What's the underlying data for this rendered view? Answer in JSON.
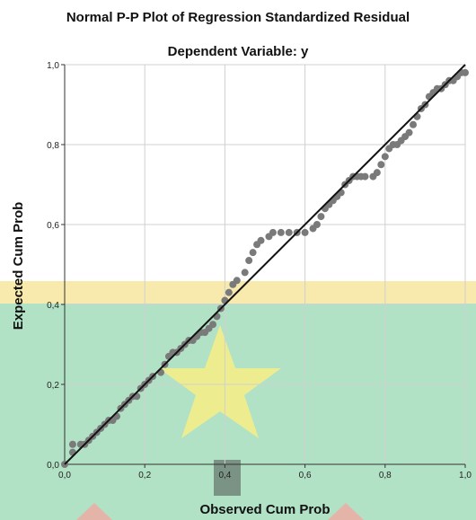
{
  "chart_data": {
    "type": "scatter",
    "title": "Normal P-P Plot of Regression Standardized Residual",
    "subtitle": "Dependent Variable: y",
    "xlabel": "Observed Cum Prob",
    "ylabel": "Expected Cum Prob",
    "xlim": [
      0,
      1
    ],
    "ylim": [
      0,
      1
    ],
    "x_ticks": [
      "0,0",
      "0,2",
      "0,4",
      "0,6",
      "0,8",
      "1,0"
    ],
    "y_ticks": [
      "0,0",
      "0,2",
      "0,4",
      "0,6",
      "0,8",
      "1,0"
    ],
    "grid": true,
    "reference_line": {
      "from": [
        0,
        0
      ],
      "to": [
        1,
        1
      ]
    },
    "series": [
      {
        "values": [
          [
            0.0,
            0.0
          ],
          [
            0.02,
            0.03
          ],
          [
            0.02,
            0.05
          ],
          [
            0.04,
            0.05
          ],
          [
            0.05,
            0.05
          ],
          [
            0.06,
            0.06
          ],
          [
            0.07,
            0.07
          ],
          [
            0.08,
            0.08
          ],
          [
            0.09,
            0.09
          ],
          [
            0.1,
            0.1
          ],
          [
            0.11,
            0.11
          ],
          [
            0.12,
            0.11
          ],
          [
            0.13,
            0.12
          ],
          [
            0.14,
            0.14
          ],
          [
            0.15,
            0.15
          ],
          [
            0.16,
            0.16
          ],
          [
            0.17,
            0.17
          ],
          [
            0.18,
            0.17
          ],
          [
            0.19,
            0.19
          ],
          [
            0.2,
            0.2
          ],
          [
            0.21,
            0.21
          ],
          [
            0.22,
            0.22
          ],
          [
            0.24,
            0.23
          ],
          [
            0.25,
            0.25
          ],
          [
            0.26,
            0.27
          ],
          [
            0.27,
            0.28
          ],
          [
            0.28,
            0.28
          ],
          [
            0.29,
            0.29
          ],
          [
            0.3,
            0.3
          ],
          [
            0.31,
            0.31
          ],
          [
            0.32,
            0.31
          ],
          [
            0.33,
            0.32
          ],
          [
            0.34,
            0.33
          ],
          [
            0.35,
            0.33
          ],
          [
            0.36,
            0.34
          ],
          [
            0.37,
            0.35
          ],
          [
            0.38,
            0.37
          ],
          [
            0.39,
            0.39
          ],
          [
            0.4,
            0.41
          ],
          [
            0.41,
            0.43
          ],
          [
            0.42,
            0.45
          ],
          [
            0.43,
            0.46
          ],
          [
            0.45,
            0.48
          ],
          [
            0.46,
            0.51
          ],
          [
            0.47,
            0.53
          ],
          [
            0.48,
            0.55
          ],
          [
            0.49,
            0.56
          ],
          [
            0.51,
            0.57
          ],
          [
            0.52,
            0.58
          ],
          [
            0.54,
            0.58
          ],
          [
            0.56,
            0.58
          ],
          [
            0.58,
            0.58
          ],
          [
            0.6,
            0.58
          ],
          [
            0.62,
            0.59
          ],
          [
            0.63,
            0.6
          ],
          [
            0.64,
            0.62
          ],
          [
            0.65,
            0.64
          ],
          [
            0.66,
            0.65
          ],
          [
            0.67,
            0.66
          ],
          [
            0.68,
            0.67
          ],
          [
            0.69,
            0.68
          ],
          [
            0.7,
            0.7
          ],
          [
            0.71,
            0.71
          ],
          [
            0.72,
            0.72
          ],
          [
            0.73,
            0.72
          ],
          [
            0.74,
            0.72
          ],
          [
            0.75,
            0.72
          ],
          [
            0.77,
            0.72
          ],
          [
            0.78,
            0.73
          ],
          [
            0.79,
            0.75
          ],
          [
            0.8,
            0.77
          ],
          [
            0.81,
            0.79
          ],
          [
            0.82,
            0.8
          ],
          [
            0.83,
            0.8
          ],
          [
            0.84,
            0.81
          ],
          [
            0.85,
            0.82
          ],
          [
            0.86,
            0.83
          ],
          [
            0.87,
            0.85
          ],
          [
            0.88,
            0.87
          ],
          [
            0.89,
            0.89
          ],
          [
            0.9,
            0.9
          ],
          [
            0.91,
            0.92
          ],
          [
            0.92,
            0.93
          ],
          [
            0.93,
            0.94
          ],
          [
            0.94,
            0.94
          ],
          [
            0.95,
            0.95
          ],
          [
            0.96,
            0.96
          ],
          [
            0.97,
            0.96
          ],
          [
            0.98,
            0.97
          ],
          [
            0.99,
            0.98
          ],
          [
            1.0,
            0.98
          ]
        ]
      }
    ],
    "colors": {
      "points": "#7a7a7a",
      "reference_line": "#111111",
      "grid": "#d0d0d0",
      "axis": "#333333",
      "overlay_green": "#7fcf9f",
      "overlay_yellow": "#f5df8a",
      "star": "#f3ee8a"
    }
  }
}
